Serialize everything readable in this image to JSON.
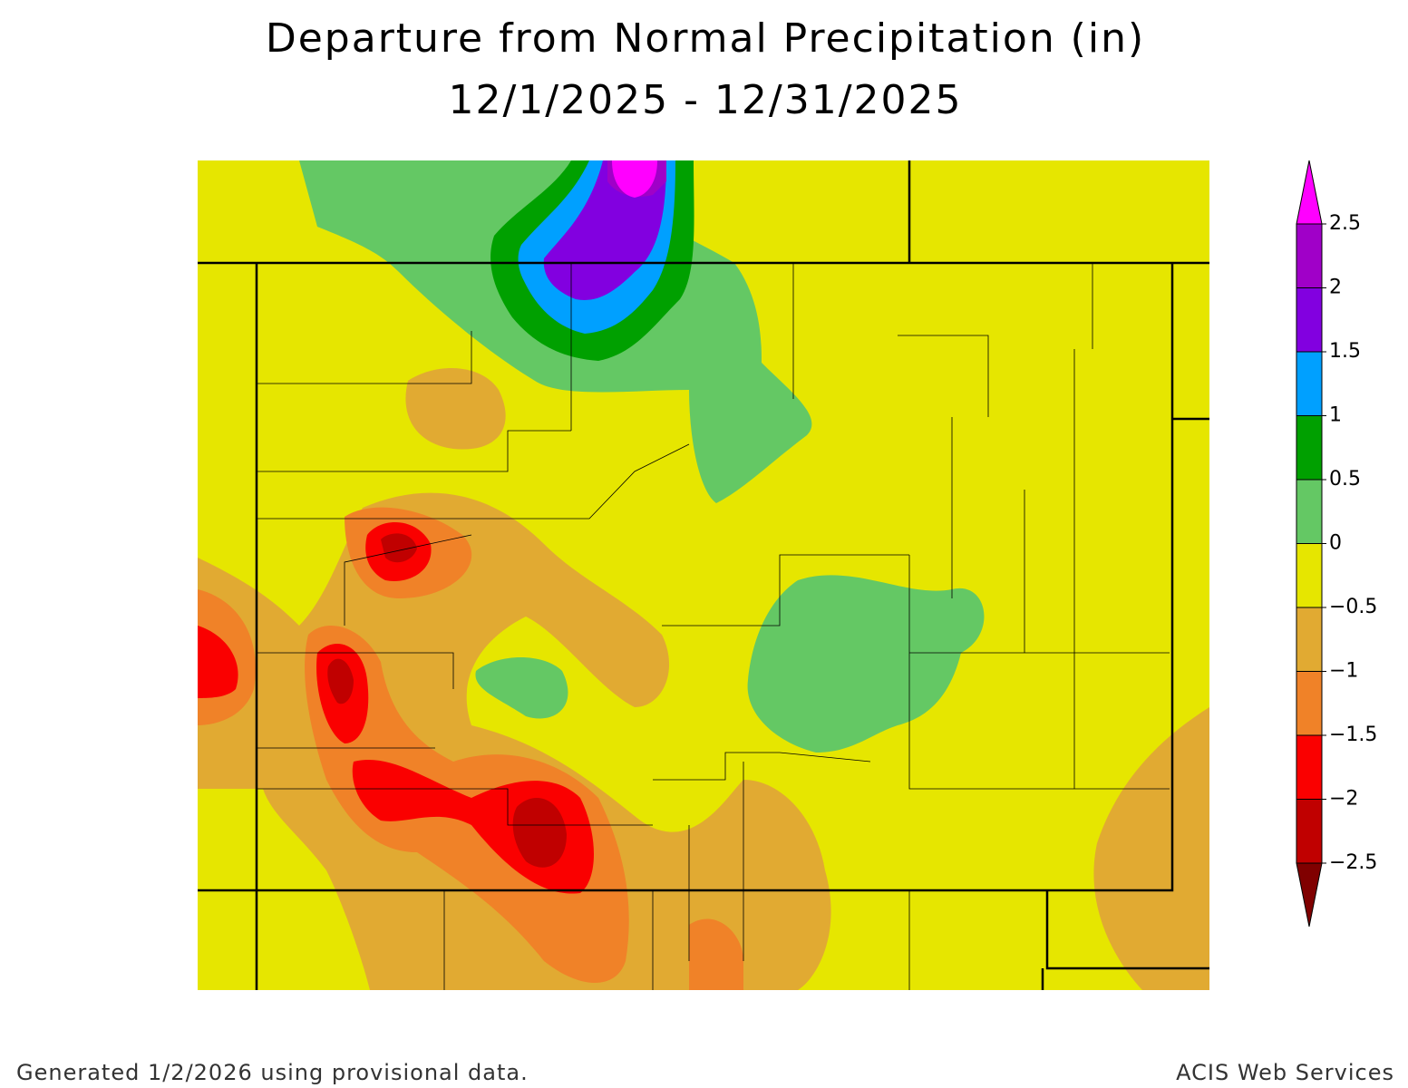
{
  "title": [
    "Departure from Normal Precipitation (in)",
    "12/1/2025 - 12/31/2025"
  ],
  "legend": {
    "ticks": [
      2.5,
      2,
      1.5,
      1,
      0.5,
      0,
      {
        "value": -0.5,
        "label": "−0.5"
      },
      {
        "value": -1,
        "label": "−1"
      },
      {
        "value": -1.5,
        "label": "−1.5"
      },
      {
        "value": -2,
        "label": "−2"
      },
      {
        "value": -2.5,
        "label": "−2.5"
      }
    ],
    "colors": [
      "#ff00ff",
      "#a000c8",
      "#8200e0",
      "#00a0ff",
      "#00a000",
      "#64c864",
      "#e6e600",
      "#e1aa32",
      "#f08228",
      "#fa0000",
      "#c00000",
      "#800000"
    ]
  },
  "footer": {
    "left": "Generated 1/2/2026 using provisional data.",
    "right": "ACIS Web Services"
  }
}
